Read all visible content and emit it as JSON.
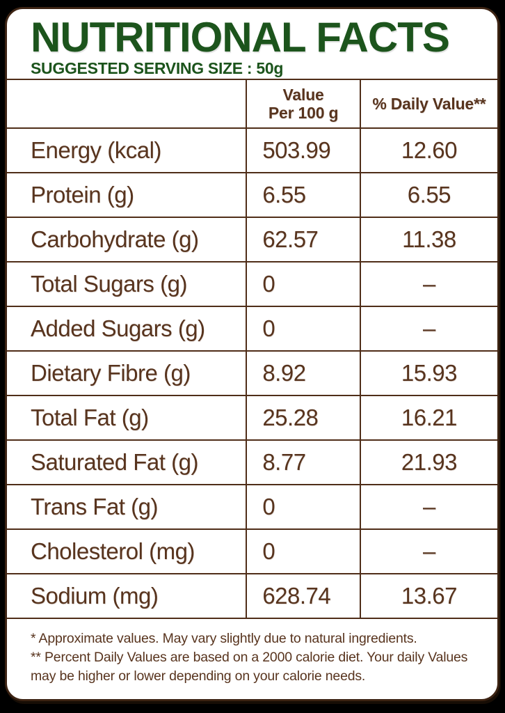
{
  "header": {
    "title": "NUTRITIONAL FACTS",
    "subtitle": "SUGGESTED SERVING SIZE : 50g"
  },
  "table": {
    "col_headers": {
      "label": "",
      "value_line1": "Value",
      "value_line2": "Per 100 g",
      "daily": "% Daily Value**"
    },
    "rows": [
      {
        "label": "Energy (kcal)",
        "value": "503.99",
        "daily": "12.60"
      },
      {
        "label": "Protein (g)",
        "value": "6.55",
        "daily": "6.55"
      },
      {
        "label": "Carbohydrate (g)",
        "value": "62.57",
        "daily": "11.38"
      },
      {
        "label": "Total Sugars (g)",
        "value": "0",
        "daily": "–"
      },
      {
        "label": "Added Sugars (g)",
        "value": "0",
        "daily": "–"
      },
      {
        "label": "Dietary Fibre (g)",
        "value": "8.92",
        "daily": "15.93"
      },
      {
        "label": "Total Fat (g)",
        "value": "25.28",
        "daily": "16.21"
      },
      {
        "label": "Saturated Fat (g)",
        "value": "8.77",
        "daily": "21.93"
      },
      {
        "label": "Trans Fat (g)",
        "value": "0",
        "daily": "–"
      },
      {
        "label": "Cholesterol (mg)",
        "value": "0",
        "daily": "–"
      },
      {
        "label": "Sodium (mg)",
        "value": "628.74",
        "daily": "13.67"
      }
    ]
  },
  "footnotes": {
    "note1": "* Approximate values. May vary slightly due to natural ingredients.",
    "note2": "** Percent Daily Values are based on a 2000 calorie diet. Your daily Values may be higher or lower depending on your calorie needs."
  },
  "colors": {
    "title_green": "#1c541c",
    "text_brown": "#58341e",
    "grid_line_brown": "#4f2d18",
    "card_border_brown": "#3c2313",
    "card_background": "#ffffff",
    "page_background": "#000000"
  }
}
